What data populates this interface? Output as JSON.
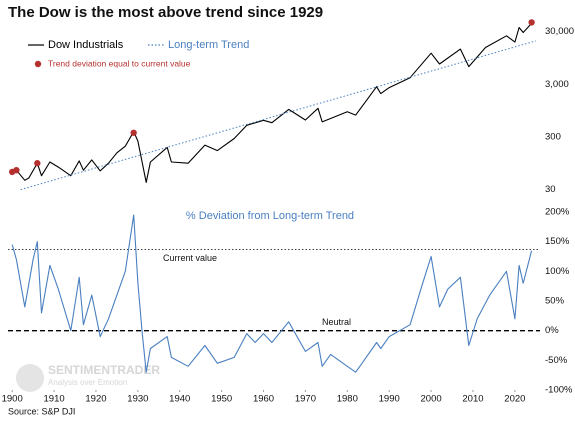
{
  "chart_data": [
    {
      "type": "line",
      "title": "The Dow is the most above trend since 1929",
      "log_scale": true,
      "xlim": [
        1899,
        2026
      ],
      "ylim": [
        19,
        50000
      ],
      "yticks": [
        {
          "value": 30000,
          "label": "30,000"
        },
        {
          "value": 3000,
          "label": "3,000"
        },
        300,
        30
      ],
      "legend": "top-left",
      "series": [
        {
          "name": "Dow Industrials",
          "color": "#000000",
          "style": "solid",
          "x": [
            1900,
            1901,
            1903,
            1904,
            1906,
            1907,
            1909,
            1911,
            1914,
            1916,
            1917,
            1919,
            1921,
            1923,
            1925,
            1927,
            1929,
            1930,
            1932,
            1933,
            1937,
            1938,
            1942,
            1946,
            1949,
            1953,
            1956,
            1960,
            1962,
            1966,
            1970,
            1973,
            1974,
            1980,
            1982,
            1987,
            1988,
            1990,
            1995,
            2000,
            2002,
            2007,
            2009,
            2013,
            2018,
            2020,
            2021,
            2022,
            2024
          ],
          "values": [
            65,
            70,
            45,
            50,
            95,
            55,
            100,
            80,
            55,
            105,
            70,
            110,
            68,
            95,
            150,
            200,
            381,
            250,
            41,
            100,
            190,
            100,
            95,
            210,
            165,
            280,
            500,
            620,
            560,
            1000,
            630,
            1050,
            580,
            900,
            780,
            2700,
            2000,
            2600,
            4000,
            11700,
            7300,
            14000,
            6500,
            15000,
            25000,
            19000,
            36000,
            29000,
            43000
          ]
        },
        {
          "name": "Long-term Trend",
          "color": "#4a7fc0",
          "style": "dotted",
          "x": [
            1902,
            2025
          ],
          "values": [
            30,
            20000
          ]
        },
        {
          "name": "Trend deviation equal to current value",
          "color": "#b5312f",
          "style": "points",
          "x": [
            1900,
            1901,
            1906,
            1929,
            2024
          ],
          "values": [
            65,
            70,
            95,
            360,
            45000
          ]
        }
      ]
    },
    {
      "type": "line",
      "title": "% Deviation from Long-term Trend",
      "xlim": [
        1899,
        2026
      ],
      "ylim": [
        -100,
        200
      ],
      "xticks": [
        1900,
        1910,
        1920,
        1930,
        1940,
        1950,
        1960,
        1970,
        1980,
        1990,
        2000,
        2010,
        2020
      ],
      "yticks": [
        {
          "value": 200,
          "label": "200%"
        },
        {
          "value": 150,
          "label": "150%"
        },
        {
          "value": 100,
          "label": "100%"
        },
        {
          "value": 50,
          "label": "50%"
        },
        {
          "value": 0,
          "label": "0%"
        },
        {
          "value": -50,
          "label": "-50%"
        },
        {
          "value": -100,
          "label": "-100%"
        }
      ],
      "series": [
        {
          "color": "#4a7fc0",
          "x": [
            1900,
            1901,
            1903,
            1905,
            1906,
            1907,
            1909,
            1911,
            1914,
            1916,
            1917,
            1919,
            1921,
            1923,
            1925,
            1927,
            1929,
            1930,
            1931,
            1932,
            1933,
            1937,
            1938,
            1942,
            1946,
            1949,
            1953,
            1956,
            1958,
            1960,
            1962,
            1966,
            1970,
            1973,
            1974,
            1976,
            1980,
            1982,
            1984,
            1987,
            1988,
            1990,
            1995,
            1998,
            2000,
            2002,
            2004,
            2007,
            2009,
            2011,
            2014,
            2018,
            2020,
            2021,
            2022,
            2024
          ],
          "values": [
            145,
            120,
            40,
            120,
            150,
            30,
            110,
            70,
            0,
            90,
            10,
            60,
            -10,
            20,
            60,
            100,
            195,
            80,
            0,
            -70,
            -30,
            -10,
            -45,
            -60,
            -25,
            -55,
            -45,
            -5,
            -20,
            -5,
            -20,
            15,
            -35,
            -20,
            -60,
            -40,
            -60,
            -70,
            -50,
            -20,
            -30,
            -10,
            10,
            80,
            125,
            40,
            70,
            90,
            -25,
            20,
            60,
            100,
            20,
            110,
            80,
            135
          ]
        }
      ],
      "hlines": [
        {
          "value": 137,
          "label": "Current value",
          "style": "dotted"
        },
        {
          "value": 0,
          "label": "Neutral",
          "style": "dashed"
        }
      ]
    }
  ],
  "watermark": {
    "text": "SENTIMENTRADER",
    "tagline": "Analysis over Emotion"
  },
  "source": "Source: S&P DJI"
}
